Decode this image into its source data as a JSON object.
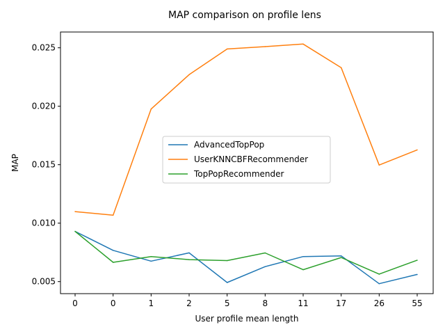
{
  "chart_data": {
    "type": "line",
    "title": "MAP comparison on profile lens",
    "xlabel": "User profile mean length",
    "ylabel": "MAP",
    "categories": [
      "0",
      "0",
      "1",
      "2",
      "5",
      "8",
      "11",
      "17",
      "26",
      "55"
    ],
    "ylim": [
      0.00397,
      0.02635
    ],
    "yticks": [
      "0.005",
      "0.010",
      "0.015",
      "0.020",
      "0.025"
    ],
    "ytick_values": [
      0.005,
      0.01,
      0.015,
      0.02,
      0.025
    ],
    "grid": false,
    "legend_position": "center-right",
    "series": [
      {
        "name": "AdvancedTopPop",
        "color": "#1f77b4",
        "values": [
          0.0093,
          0.00767,
          0.00675,
          0.00746,
          0.00492,
          0.00628,
          0.00714,
          0.0072,
          0.00482,
          0.00561
        ]
      },
      {
        "name": "UserKNNCBFRecommender",
        "color": "#ff7f0e",
        "values": [
          0.01099,
          0.01068,
          0.01976,
          0.0227,
          0.0249,
          0.0251,
          0.02532,
          0.0233,
          0.01497,
          0.01627
        ]
      },
      {
        "name": "TopPopRecommender",
        "color": "#2ca02c",
        "values": [
          0.0093,
          0.00665,
          0.00714,
          0.00688,
          0.0068,
          0.00745,
          0.00602,
          0.00706,
          0.00564,
          0.00683
        ]
      }
    ]
  }
}
